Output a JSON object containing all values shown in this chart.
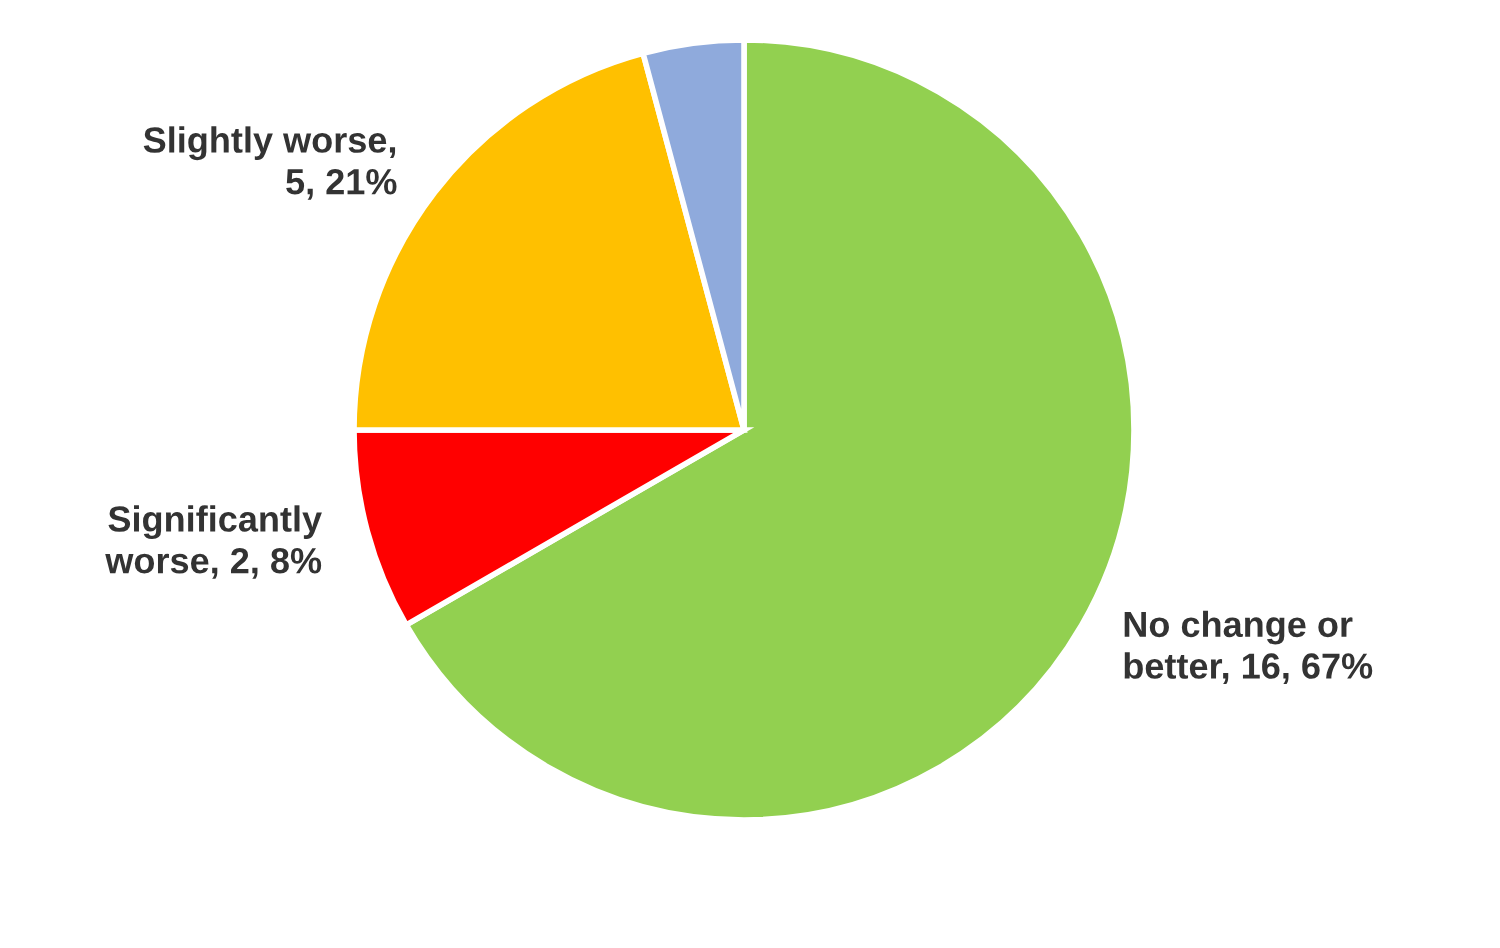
{
  "chart_data": {
    "type": "pie",
    "categories": [
      "No change or better, 16, 67%",
      "Significantly worse, 2, 8%",
      "Slightly worse, 5, 21%",
      null
    ],
    "values": [
      16,
      2,
      5,
      1
    ],
    "colors": [
      "#92d050",
      "#ff0000",
      "#ffc000",
      "#8faadc"
    ],
    "legend": false
  }
}
